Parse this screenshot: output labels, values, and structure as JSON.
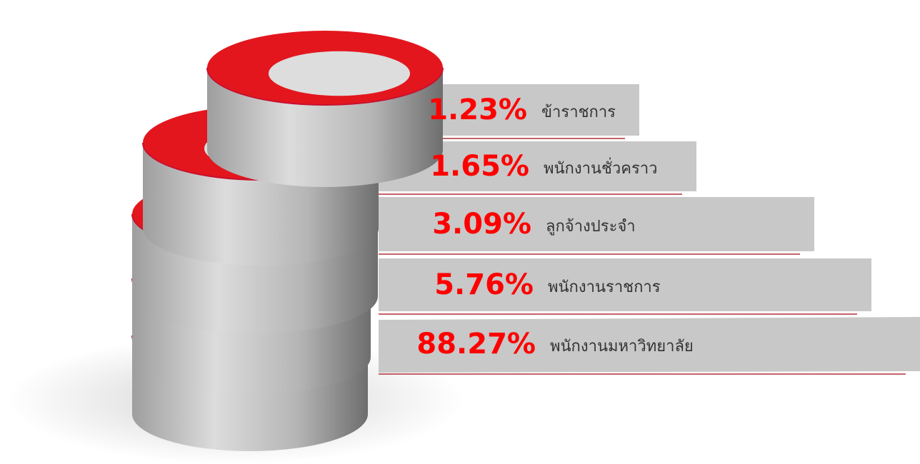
{
  "chart_data": {
    "type": "ring-stack",
    "categories": [
      "ข้าราชการ",
      "พนักงานชั่วคราว",
      "ลูกจ้างประจำ",
      "พนักงานราชการ",
      "พนักงานมหาวิทยาลัย"
    ],
    "values": [
      1.23,
      1.65,
      3.09,
      5.76,
      88.27
    ],
    "value_labels": [
      "1.23%",
      "1.65%",
      "3.09%",
      "5.76%",
      "88.27%"
    ],
    "color": "#e3161e"
  }
}
